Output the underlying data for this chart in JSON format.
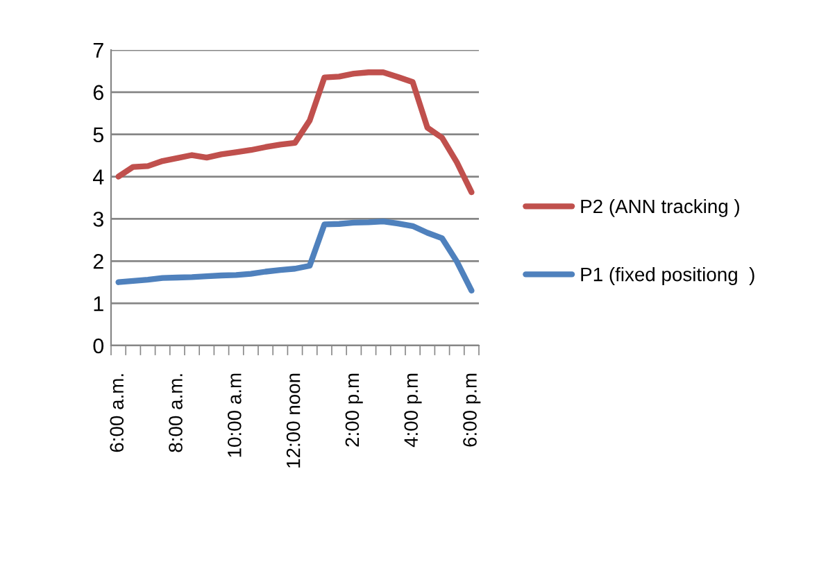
{
  "chart_data": {
    "type": "line",
    "categories": [
      "6:00 a.m.",
      null,
      null,
      null,
      "8:00 a.m.",
      null,
      null,
      null,
      "10:00 a.m",
      null,
      null,
      null,
      "12:00 noon",
      null,
      null,
      null,
      "2:00 p.m",
      null,
      null,
      null,
      "4:00 p.m",
      null,
      null,
      null,
      "6:00 p.m"
    ],
    "series": [
      {
        "name": "P2 (ANN tracking )",
        "color": "#c0504d",
        "values": [
          4.0,
          4.23,
          4.25,
          4.37,
          4.44,
          4.51,
          4.45,
          4.53,
          4.58,
          4.63,
          4.7,
          4.76,
          4.8,
          5.33,
          6.35,
          6.37,
          6.44,
          6.47,
          6.47,
          6.36,
          6.24,
          5.16,
          4.92,
          4.34,
          3.63
        ]
      },
      {
        "name": "P1 (fixed positiong  )",
        "color": "#4f81bd",
        "values": [
          1.5,
          1.53,
          1.56,
          1.6,
          1.61,
          1.62,
          1.64,
          1.66,
          1.67,
          1.7,
          1.75,
          1.79,
          1.82,
          1.89,
          2.87,
          2.88,
          2.91,
          2.92,
          2.94,
          2.89,
          2.83,
          2.67,
          2.54,
          1.99,
          1.3
        ]
      }
    ],
    "ylim": [
      0,
      7
    ],
    "yticks": [
      0,
      1,
      2,
      3,
      4,
      5,
      6,
      7
    ],
    "grid": "y",
    "legend": "right",
    "marker": "none",
    "line_style": "solid"
  }
}
